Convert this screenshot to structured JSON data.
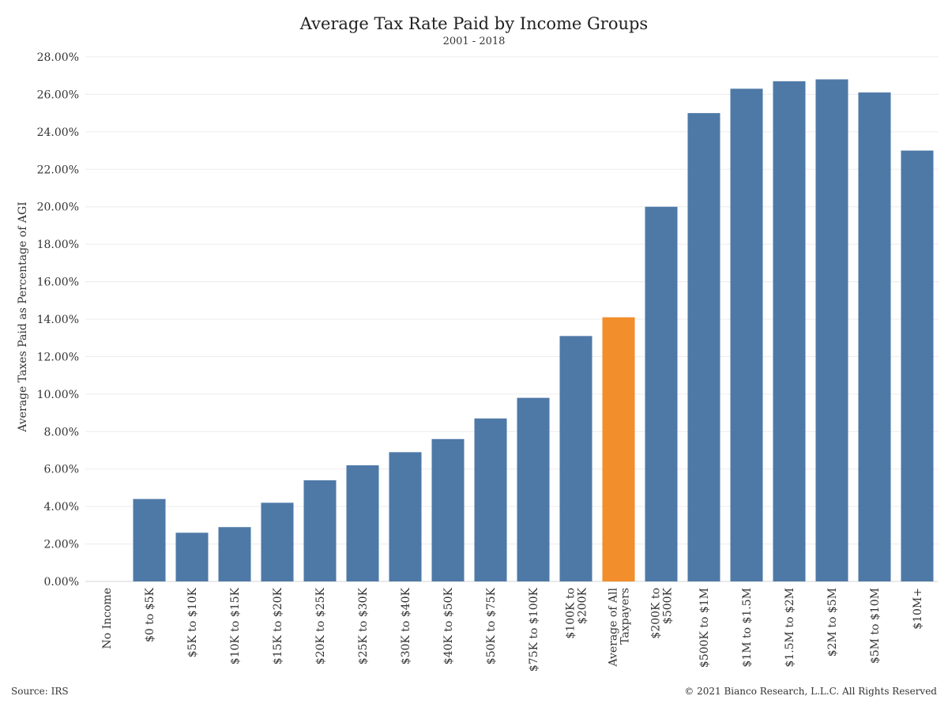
{
  "header": {
    "title": "Average Tax Rate Paid by Income Groups",
    "subtitle": "2001 - 2018"
  },
  "footer": {
    "source": "Source: IRS",
    "copyright": "© 2021 Bianco Research, L.L.C. All Rights Reserved"
  },
  "colors": {
    "bar": "#4e79a7",
    "highlight": "#f28e2b",
    "grid": "#ececec",
    "text": "#333333"
  },
  "chart_data": {
    "type": "bar",
    "title": "Average Tax Rate Paid by Income Groups",
    "subtitle": "2001 - 2018",
    "xlabel": "",
    "ylabel": "Average Taxes Paid as Percentage of AGI",
    "ylim": [
      0,
      28
    ],
    "yticks": [
      "0.00%",
      "2.00%",
      "4.00%",
      "6.00%",
      "8.00%",
      "10.00%",
      "12.00%",
      "14.00%",
      "16.00%",
      "18.00%",
      "20.00%",
      "22.00%",
      "24.00%",
      "26.00%",
      "28.00%"
    ],
    "grid": true,
    "categories": [
      [
        "No Income"
      ],
      [
        "$0 to $5K"
      ],
      [
        "$5K to $10K"
      ],
      [
        "$10K to $15K"
      ],
      [
        "$15K to $20K"
      ],
      [
        "$20K to $25K"
      ],
      [
        "$25K to $30K"
      ],
      [
        "$30K to $40K"
      ],
      [
        "$40K to $50K"
      ],
      [
        "$50K to $75K"
      ],
      [
        "$75K to $100K"
      ],
      [
        "$100K to",
        "$200K"
      ],
      [
        "Average of All",
        "Taxpayers"
      ],
      [
        "$200K to",
        "$500K"
      ],
      [
        "$500K to $1M"
      ],
      [
        "$1M to $1.5M"
      ],
      [
        "$1.5M to $2M"
      ],
      [
        "$2M to $5M"
      ],
      [
        "$5M to $10M"
      ],
      [
        "$10M+"
      ]
    ],
    "values": [
      0.0,
      4.4,
      2.6,
      2.9,
      4.2,
      5.4,
      6.2,
      6.9,
      7.6,
      8.7,
      9.8,
      13.1,
      14.1,
      20.0,
      25.0,
      26.3,
      26.7,
      26.8,
      26.1,
      23.0
    ],
    "highlight_index": 12
  }
}
